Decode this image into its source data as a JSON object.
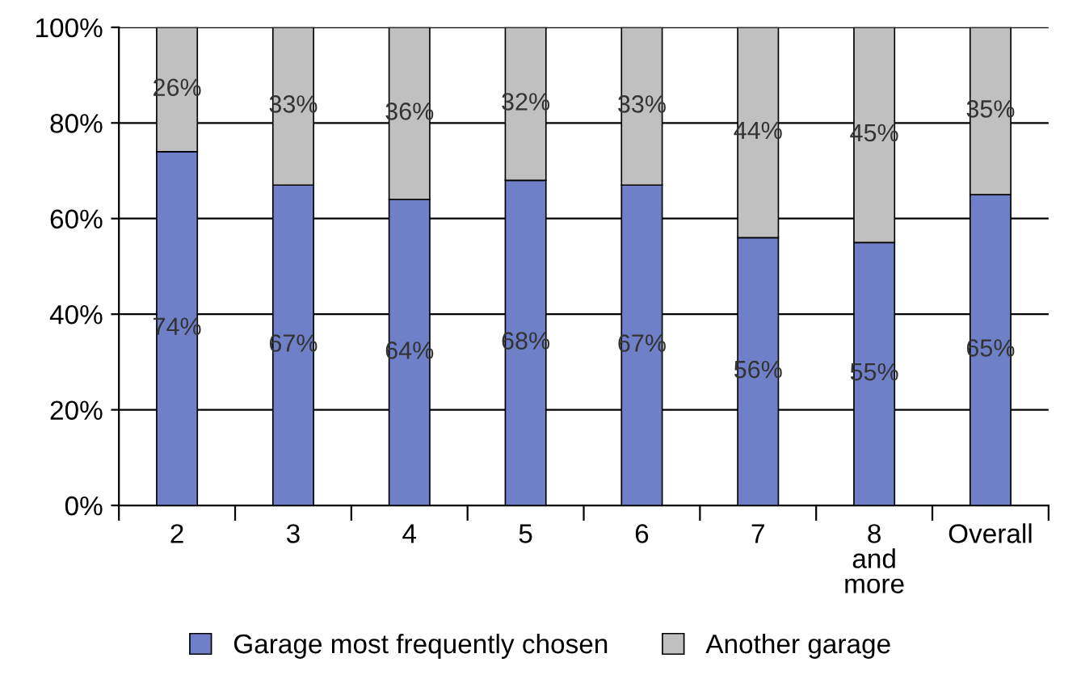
{
  "chart_data": {
    "type": "bar",
    "stacked": true,
    "categories": [
      "2",
      "3",
      "4",
      "5",
      "6",
      "7",
      "8\nand\nmore",
      "Overall"
    ],
    "series": [
      {
        "name": "Garage most frequently chosen",
        "color": "#7080c8",
        "values": [
          74,
          67,
          64,
          68,
          67,
          56,
          55,
          65
        ],
        "value_labels": [
          "74%",
          "67%",
          "64%",
          "68%",
          "67%",
          "56%",
          "55%",
          "65%"
        ]
      },
      {
        "name": "Another garage",
        "color": "#c0c0c0",
        "values": [
          26,
          33,
          36,
          32,
          33,
          44,
          45,
          35
        ],
        "value_labels": [
          "26%",
          "33%",
          "36%",
          "32%",
          "33%",
          "44%",
          "45%",
          "35%"
        ]
      }
    ],
    "ylim": [
      0,
      100
    ],
    "yticks": [
      {
        "value": 0,
        "label": "0%"
      },
      {
        "value": 20,
        "label": "20%"
      },
      {
        "value": 40,
        "label": "40%"
      },
      {
        "value": 60,
        "label": "60%"
      },
      {
        "value": 80,
        "label": "80%"
      },
      {
        "value": 100,
        "label": "100%"
      }
    ],
    "grid": "y",
    "legend": "bottom"
  }
}
